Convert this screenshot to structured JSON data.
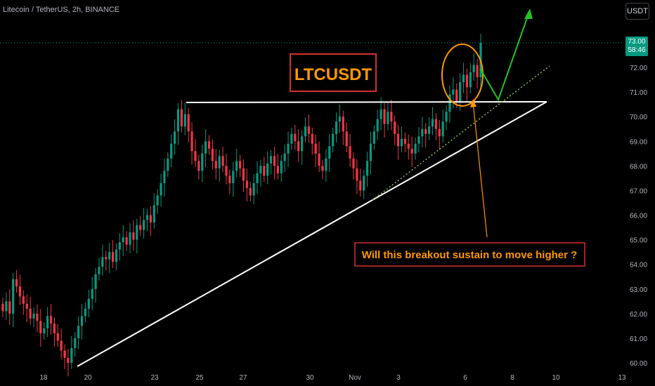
{
  "header": {
    "symbol_label": "Litecoin / TetherUS, 2h, BINANCE",
    "unit_button": "USDT"
  },
  "price_tag": {
    "price": "73.00",
    "countdown": "58:46"
  },
  "annotations": {
    "title": "LTCUSDT",
    "question": "Will this breakout sustain to move higher ?"
  },
  "colors": {
    "background": "#000000",
    "up_candle": "#089981",
    "down_candle": "#f23645",
    "pattern_lines": "#ffffff",
    "title_box": "#d32f2f",
    "title_text": "#ff9800",
    "projection_arrow": "#22c322",
    "breakout_circle": "#ff9800",
    "support_dotted": "#8bc34a"
  },
  "chart_data": {
    "type": "candlestick",
    "symbol": "LTCUSDT",
    "timeframe": "2h",
    "x_tick_labels": [
      "18",
      "20",
      "23",
      "25",
      "27",
      "30",
      "Nov",
      "3",
      "6",
      "8",
      "10",
      "13"
    ],
    "y_tick_labels": [
      "60.00",
      "61.00",
      "62.00",
      "63.00",
      "64.00",
      "65.00",
      "66.00",
      "67.00",
      "68.00",
      "69.00",
      "70.00",
      "71.00",
      "72.00",
      "73.00"
    ],
    "ylim": [
      59.8,
      74.5
    ],
    "grid": false,
    "key_levels": {
      "resistance": 70.6,
      "last_price": 73.0
    },
    "pattern": "ascending triangle",
    "closes_approx": [
      62.1,
      62.5,
      62.0,
      63.4,
      63.1,
      62.7,
      62.4,
      62.2,
      61.8,
      62.0,
      61.7,
      61.2,
      61.4,
      61.9,
      61.6,
      61.2,
      60.9,
      60.5,
      60.2,
      60.0,
      60.6,
      61.0,
      61.5,
      61.9,
      62.2,
      62.6,
      63.0,
      63.6,
      63.9,
      64.3,
      64.2,
      64.5,
      64.1,
      64.6,
      64.9,
      65.1,
      64.8,
      65.3,
      65.0,
      65.6,
      65.4,
      65.8,
      66.0,
      65.7,
      66.4,
      66.8,
      67.3,
      67.8,
      68.3,
      68.9,
      69.4,
      70.3,
      69.6,
      70.1,
      69.4,
      68.6,
      68.2,
      67.8,
      68.5,
      69.0,
      68.7,
      68.2,
      67.9,
      68.4,
      68.0,
      67.6,
      67.3,
      67.8,
      68.2,
      67.9,
      67.4,
      67.1,
      66.8,
      67.3,
      67.7,
      68.0,
      67.6,
      68.1,
      68.4,
      68.0,
      67.7,
      68.2,
      68.5,
      68.9,
      69.3,
      69.0,
      68.6,
      69.2,
      69.6,
      69.3,
      68.9,
      68.5,
      68.0,
      67.8,
      68.3,
      68.8,
      69.3,
      69.8,
      70.0,
      69.4,
      68.8,
      68.3,
      67.9,
      67.4,
      67.0,
      67.6,
      68.2,
      68.9,
      69.4,
      69.9,
      70.3,
      69.7,
      70.2,
      69.8,
      69.3,
      68.8,
      69.1,
      68.9,
      68.7,
      68.5,
      68.9,
      69.2,
      69.5,
      69.3,
      69.6,
      69.9,
      69.5,
      69.2,
      69.8,
      70.2,
      70.9,
      71.1,
      70.6,
      71.4,
      71.7,
      71.2,
      71.8,
      72.1,
      71.6,
      73.0
    ],
    "projection": "expected pullback to trendline then continuation higher"
  }
}
